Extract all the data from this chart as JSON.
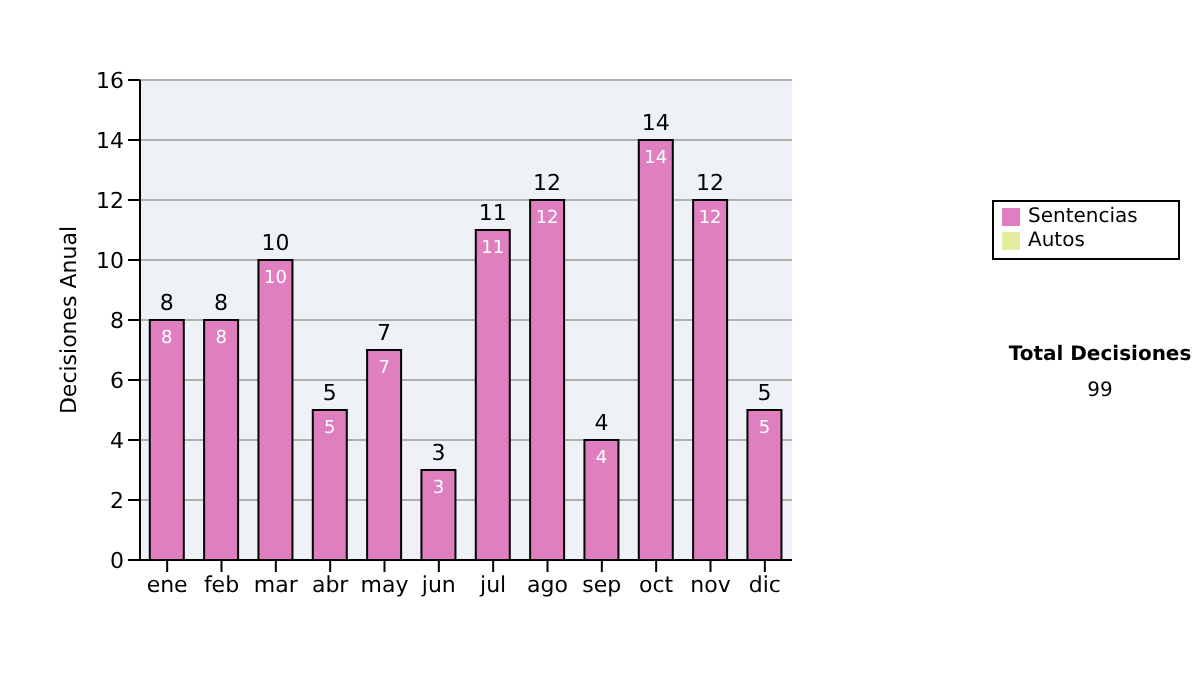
{
  "chart_data": {
    "type": "bar",
    "ylabel": "Decisiones Anual",
    "categories": [
      "ene",
      "feb",
      "mar",
      "abr",
      "may",
      "jun",
      "jul",
      "ago",
      "sep",
      "oct",
      "nov",
      "dic"
    ],
    "series": [
      {
        "name": "Sentencias",
        "color": "#e07fc0",
        "values": [
          8,
          8,
          10,
          5,
          7,
          3,
          11,
          12,
          4,
          14,
          12,
          5
        ],
        "value_labels": [
          "8",
          "8",
          "10",
          "5",
          "7",
          "3",
          "11",
          "12",
          "4",
          "14",
          "12",
          "5"
        ]
      },
      {
        "name": "Autos",
        "color": "#e6eca0",
        "values": [
          0,
          0,
          0,
          0,
          0,
          0,
          0,
          0,
          0,
          0,
          0,
          0
        ]
      }
    ],
    "stacked": true,
    "totals": [
      "8",
      "8",
      "10",
      "5",
      "7",
      "3",
      "11",
      "12",
      "4",
      "14",
      "12",
      "5"
    ],
    "ylim": [
      0,
      16
    ],
    "yticks": [
      0,
      2,
      4,
      6,
      8,
      10,
      12,
      14,
      16
    ],
    "grid": "y",
    "legend": "right",
    "annotations": [
      "Total Decisiones",
      "99"
    ]
  }
}
